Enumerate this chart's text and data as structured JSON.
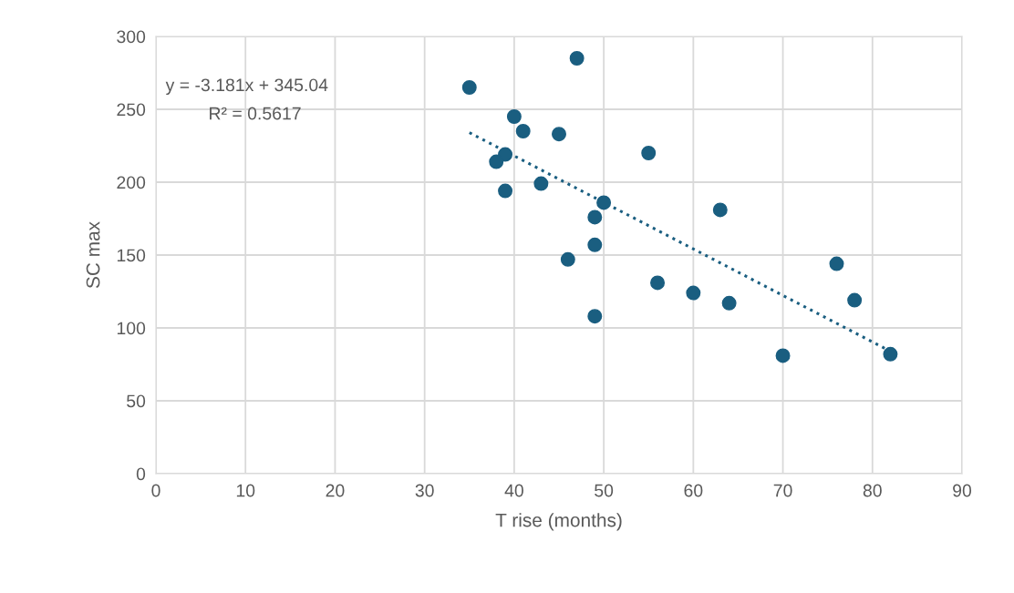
{
  "chart_data": {
    "type": "scatter",
    "xlabel": "T rise (months)",
    "ylabel": "SC max",
    "xlim": [
      0,
      90
    ],
    "xticks": [
      0,
      10,
      20,
      30,
      40,
      50,
      60,
      70,
      80,
      90
    ],
    "ylim": [
      0,
      300
    ],
    "yticks": [
      0,
      50,
      100,
      150,
      200,
      250,
      300
    ],
    "grid": true,
    "legend": false,
    "marker": "circle",
    "annotations": [
      "y = -3.181x + 345.04",
      "R² = 0.5617"
    ],
    "series": [
      {
        "color": "#1a5e80",
        "x": [
          35,
          47,
          40,
          41,
          45,
          39,
          38,
          39,
          43,
          50,
          49,
          49,
          46,
          49,
          55,
          63,
          56,
          60,
          64,
          76,
          78,
          70,
          82
        ],
        "values": [
          265,
          285,
          245,
          235,
          233,
          219,
          214,
          194,
          199,
          186,
          176,
          157,
          147,
          108,
          220,
          181,
          131,
          124,
          117,
          144,
          119,
          81,
          82
        ]
      },
      {
        "type": "line",
        "color": "#1a5e80",
        "line_style": "dotted",
        "marker": "none",
        "x": [
          35,
          82
        ],
        "values": [
          234,
          84
        ]
      }
    ]
  }
}
